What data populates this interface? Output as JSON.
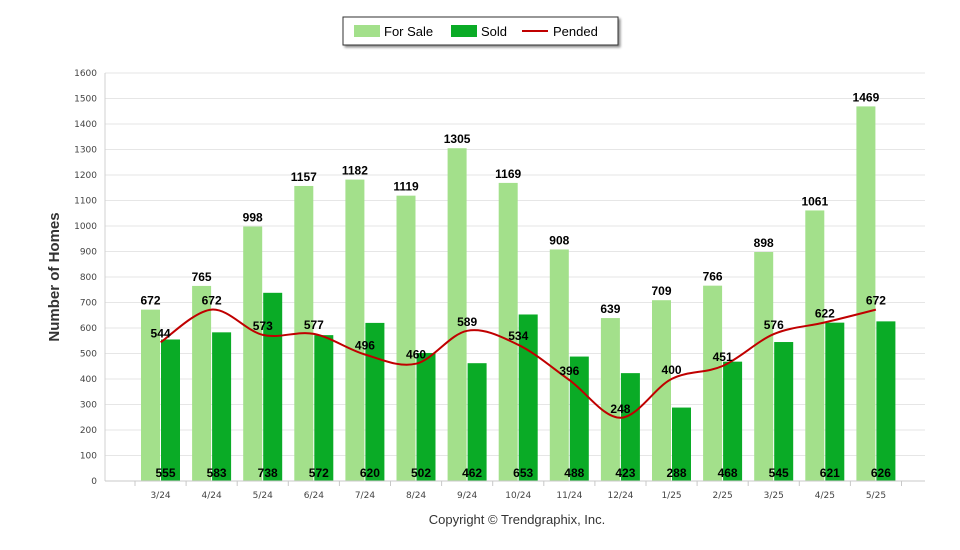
{
  "chart_data": {
    "type": "bar",
    "ylabel": "Number of Homes",
    "ylim": [
      0,
      1600
    ],
    "y_ticks": [
      "0",
      "100",
      "200",
      "300",
      "400",
      "500",
      "600",
      "700",
      "800",
      "900",
      "1000",
      "1100",
      "1200",
      "1300",
      "1400",
      "1500",
      "1600"
    ],
    "grid": true,
    "legend_position": "top-center",
    "categories": [
      "3/24",
      "4/24",
      "5/24",
      "6/24",
      "7/24",
      "8/24",
      "9/24",
      "10/24",
      "11/24",
      "12/24",
      "1/25",
      "2/25",
      "3/25",
      "4/25",
      "5/25"
    ],
    "series": [
      {
        "name": "For Sale",
        "type": "bar",
        "color": "#a3e08b",
        "values": [
          672,
          765,
          998,
          1157,
          1182,
          1119,
          1305,
          1169,
          908,
          639,
          709,
          766,
          898,
          1061,
          1469
        ],
        "labels": [
          "672",
          "765",
          "998",
          "1157",
          "1182",
          "1119",
          "1305",
          "1169",
          "908",
          "639",
          "709",
          "766",
          "898",
          "1061",
          "1469"
        ]
      },
      {
        "name": "Sold",
        "type": "bar",
        "color": "#0aab26",
        "values": [
          555,
          583,
          738,
          572,
          620,
          502,
          462,
          653,
          488,
          423,
          288,
          468,
          545,
          621,
          626
        ],
        "labels": [
          "555",
          "583",
          "738",
          "572",
          "620",
          "502",
          "462",
          "653",
          "488",
          "423",
          "288",
          "468",
          "545",
          "621",
          "626"
        ]
      },
      {
        "name": "Pended",
        "type": "line",
        "color": "#c00000",
        "values": [
          544,
          672,
          573,
          577,
          496,
          460,
          589,
          534,
          396,
          248,
          400,
          451,
          576,
          622,
          672
        ],
        "labels": [
          "544",
          "672",
          "573",
          "577",
          "496",
          "460",
          "589",
          "534",
          "396",
          "248",
          "400",
          "451",
          "576",
          "622",
          "672"
        ]
      }
    ]
  },
  "footer": {
    "copyright": "Copyright © Trendgraphix, Inc."
  }
}
